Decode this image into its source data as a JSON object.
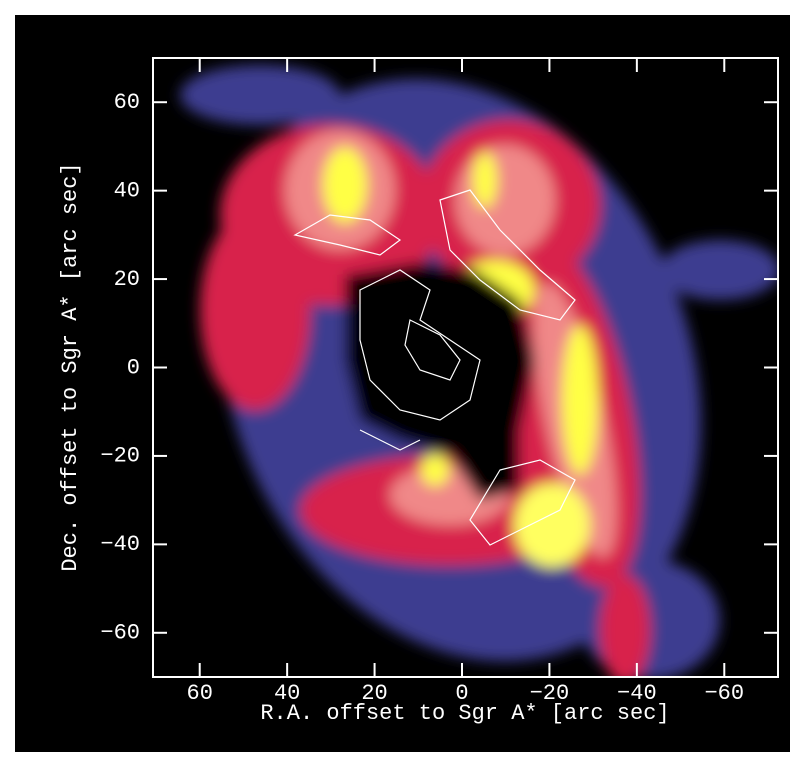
{
  "chart_data": {
    "type": "image",
    "xlabel": "R.A. offset to Sgr A* [arc sec]",
    "ylabel": "Dec. offset to Sgr A* [arc sec]",
    "xlim": [
      70,
      -70
    ],
    "ylim": [
      -70,
      70
    ],
    "xticks": [
      60,
      40,
      20,
      0,
      {
        "value": -20,
        "label": "−20"
      },
      {
        "value": -40,
        "label": "−40"
      },
      {
        "value": -60,
        "label": "−60"
      }
    ],
    "yticks": [
      {
        "value": -60,
        "label": "−60"
      },
      {
        "value": -40,
        "label": "−40"
      },
      {
        "value": -20,
        "label": "−20"
      },
      0,
      20,
      40,
      60
    ]
  }
}
